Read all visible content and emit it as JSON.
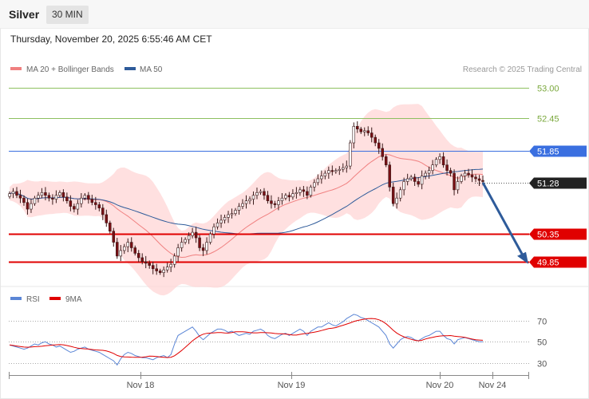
{
  "header": {
    "instrument": "Silver",
    "timeframe": "30 MIN"
  },
  "timestamp": "Thursday, November 20, 2025 6:55:46 AM CET",
  "credit": "Research © 2025 Trading Central",
  "legend": {
    "ma20": {
      "label": "MA 20 + Bollinger Bands",
      "color": "#f08080"
    },
    "ma50": {
      "label": "MA 50",
      "color": "#2e5b9a"
    }
  },
  "rsi_legend": {
    "rsi": {
      "label": "RSI",
      "color": "#5b86d6"
    },
    "ma9": {
      "label": "9MA",
      "color": "#e00000"
    }
  },
  "colors": {
    "bull": "#ffffff",
    "bear": "#7a0f14",
    "band": "#ffd6d6",
    "resistance": "#3a6fe0",
    "support": "#e00000",
    "target_up": "#8dc060",
    "current": "#222222",
    "arrow": "#2e5b9a"
  },
  "chart_data": {
    "type": "candlestick",
    "x_labels": [
      "Nov 18",
      "Nov 19",
      "Nov 20",
      "Nov 24"
    ],
    "ylim": [
      49.5,
      53.2
    ],
    "levels": [
      {
        "value": "53.00",
        "kind": "target_up"
      },
      {
        "value": "52.45",
        "kind": "target_up"
      },
      {
        "value": "51.85",
        "kind": "resistance"
      },
      {
        "value": "51.28",
        "kind": "current"
      },
      {
        "value": "50.35",
        "kind": "support"
      },
      {
        "value": "49.85",
        "kind": "support"
      }
    ],
    "close": [
      51.08,
      51.12,
      51.05,
      51.0,
      50.92,
      50.8,
      50.9,
      51.0,
      51.05,
      51.1,
      51.05,
      51.0,
      50.98,
      51.05,
      51.1,
      51.02,
      50.95,
      50.85,
      50.8,
      50.9,
      51.0,
      51.05,
      50.98,
      50.92,
      50.88,
      50.82,
      50.7,
      50.55,
      50.4,
      50.2,
      49.95,
      50.05,
      50.12,
      50.2,
      50.1,
      50.0,
      49.92,
      49.85,
      49.82,
      49.78,
      49.72,
      49.68,
      49.65,
      49.7,
      49.75,
      49.8,
      49.95,
      50.1,
      50.2,
      50.25,
      50.32,
      50.38,
      50.28,
      50.1,
      50.05,
      50.2,
      50.35,
      50.48,
      50.55,
      50.6,
      50.65,
      50.7,
      50.72,
      50.78,
      50.85,
      50.9,
      50.95,
      50.98,
      51.05,
      51.1,
      51.12,
      51.05,
      50.95,
      50.9,
      50.88,
      50.95,
      51.0,
      51.05,
      51.02,
      51.08,
      51.1,
      51.15,
      51.12,
      51.05,
      51.2,
      51.28,
      51.35,
      51.4,
      51.45,
      51.5,
      51.48,
      51.5,
      51.52,
      51.55,
      51.58,
      52.0,
      52.3,
      52.25,
      52.2,
      52.22,
      52.18,
      52.1,
      52.0,
      51.9,
      51.75,
      51.6,
      51.2,
      50.9,
      51.0,
      51.15,
      51.3,
      51.35,
      51.38,
      51.3,
      51.25,
      51.4,
      51.45,
      51.5,
      51.6,
      51.7,
      51.75,
      51.6,
      51.5,
      51.45,
      51.15,
      51.3,
      51.4,
      51.45,
      51.42,
      51.38,
      51.35,
      51.32,
      51.3
    ],
    "rsi": [
      47,
      46,
      45,
      44,
      43,
      44,
      46,
      48,
      47,
      49,
      50,
      48,
      47,
      45,
      46,
      44,
      42,
      40,
      41,
      43,
      44,
      45,
      43,
      42,
      41,
      40,
      38,
      36,
      34,
      32,
      28,
      34,
      38,
      40,
      39,
      37,
      36,
      35,
      35,
      34,
      33,
      35,
      36,
      37,
      35,
      38,
      48,
      56,
      58,
      60,
      62,
      64,
      60,
      55,
      52,
      55,
      58,
      60,
      62,
      62,
      61,
      59,
      60,
      58,
      56,
      57,
      58,
      57,
      60,
      61,
      62,
      60,
      56,
      54,
      53,
      55,
      57,
      58,
      56,
      58,
      60,
      62,
      60,
      56,
      60,
      62,
      64,
      64,
      66,
      68,
      66,
      65,
      67,
      69,
      72,
      74,
      76,
      75,
      73,
      72,
      70,
      68,
      66,
      64,
      60,
      56,
      48,
      44,
      48,
      52,
      54,
      55,
      54,
      52,
      51,
      53,
      55,
      56,
      58,
      60,
      60,
      56,
      53,
      52,
      48,
      52,
      53,
      54,
      53,
      52,
      51,
      50,
      50
    ]
  },
  "rsi_axis": [
    "70",
    "50",
    "30"
  ]
}
